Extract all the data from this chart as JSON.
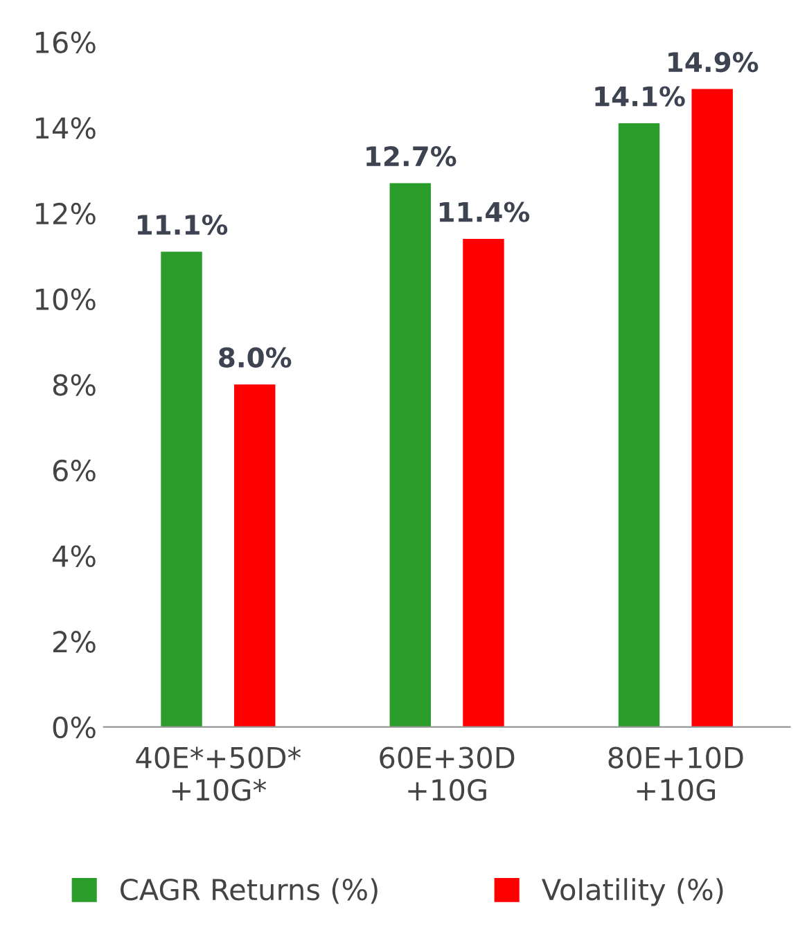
{
  "chart_data": {
    "type": "bar",
    "categories": [
      "40E*+50D*\n+10G*",
      "60E+30D\n+10G",
      "80E+10D\n+10G"
    ],
    "series": [
      {
        "name": "CAGR Returns (%)",
        "color": "#2a9d2a",
        "values": [
          11.1,
          12.7,
          14.1
        ],
        "value_labels": [
          "11.1%",
          "12.7%",
          "14.1%"
        ]
      },
      {
        "name": "Volatility (%)",
        "color": "#ff0000",
        "values": [
          8.0,
          11.4,
          14.9
        ],
        "value_labels": [
          "8.0%",
          "11.4%",
          "14.9%"
        ]
      }
    ],
    "ylim": [
      0,
      16
    ],
    "yticks": [
      {
        "value": 0,
        "label": "0%"
      },
      {
        "value": 2,
        "label": "2%"
      },
      {
        "value": 4,
        "label": "4%"
      },
      {
        "value": 6,
        "label": "6%"
      },
      {
        "value": 8,
        "label": "8%"
      },
      {
        "value": 10,
        "label": "10%"
      },
      {
        "value": 12,
        "label": "12%"
      },
      {
        "value": 14,
        "label": "14%"
      },
      {
        "value": 16,
        "label": "16%"
      }
    ],
    "grid": false,
    "legend": "bottom"
  }
}
